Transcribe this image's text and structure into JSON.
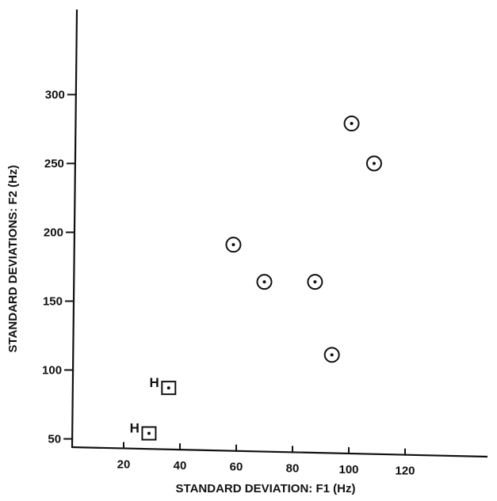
{
  "chart_data": {
    "type": "scatter",
    "xlabel": "STANDARD DEVIATION: F1 (Hz)",
    "ylabel": "STANDARD DEVIATIONS: F2 (Hz)",
    "xticks": [
      20,
      40,
      60,
      80,
      100,
      120
    ],
    "yticks": [
      50,
      100,
      150,
      200,
      250,
      300
    ],
    "xlim": [
      0,
      150
    ],
    "ylim": [
      40,
      360
    ],
    "grid": false,
    "series": [
      {
        "marker": "circle-dot",
        "points": [
          {
            "x": 59,
            "y": 191
          },
          {
            "x": 70,
            "y": 164
          },
          {
            "x": 88,
            "y": 164
          },
          {
            "x": 94,
            "y": 111
          },
          {
            "x": 101,
            "y": 279
          },
          {
            "x": 109,
            "y": 250
          }
        ]
      },
      {
        "marker": "square-dot",
        "points": [
          {
            "x": 36,
            "y": 87,
            "label": "H"
          },
          {
            "x": 29,
            "y": 54,
            "label": "H"
          }
        ]
      }
    ]
  }
}
